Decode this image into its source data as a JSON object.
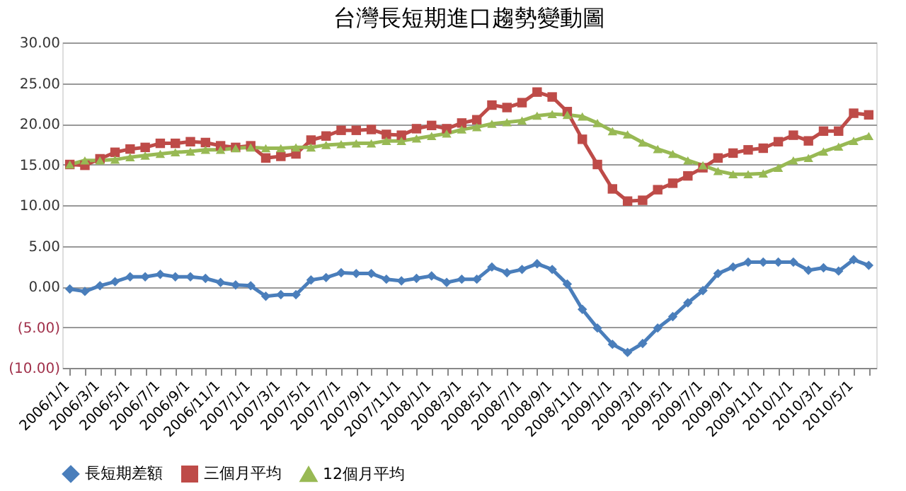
{
  "chart_data": {
    "type": "line",
    "title": "台灣長短期進口趨勢變動圖",
    "categories": [
      "2006/1/1",
      null,
      "2006/3/1",
      null,
      "2006/5/1",
      null,
      "2006/7/1",
      null,
      "2006/9/1",
      null,
      "2006/11/1",
      null,
      "2007/1/1",
      null,
      "2007/3/1",
      null,
      "2007/5/1",
      null,
      "2007/7/1",
      null,
      "2007/9/1",
      null,
      "2007/11/1",
      null,
      "2008/1/1",
      null,
      "2008/3/1",
      null,
      "2008/5/1",
      null,
      "2008/7/1",
      null,
      "2008/9/1",
      null,
      "2008/11/1",
      null,
      "2009/1/1",
      null,
      "2009/3/1",
      null,
      "2009/5/1",
      null,
      "2009/7/1",
      null,
      "2009/9/1",
      null,
      "2009/11/1",
      null,
      "2010/1/1",
      null,
      "2010/3/1",
      null,
      "2010/5/1",
      null
    ],
    "series": [
      {
        "name": "長短期差額",
        "color": "#4a7ebb",
        "marker": "diamond",
        "values": [
          -0.3,
          -0.6,
          0.1,
          0.6,
          1.2,
          1.2,
          1.5,
          1.2,
          1.2,
          1.0,
          0.5,
          0.2,
          0.1,
          -1.2,
          -1.0,
          -1.0,
          0.8,
          1.1,
          1.7,
          1.6,
          1.6,
          0.9,
          0.7,
          1.0,
          1.3,
          0.5,
          0.9,
          0.9,
          2.4,
          1.7,
          2.1,
          2.8,
          2.1,
          0.3,
          -2.8,
          -5.1,
          -7.1,
          -8.1,
          -7.0,
          -5.1,
          -3.7,
          -2.0,
          -0.5,
          1.6,
          2.4,
          3.0,
          3.0,
          3.0,
          3.0,
          2.0,
          2.3,
          1.9,
          3.3,
          2.6
        ]
      },
      {
        "name": "三個月平均",
        "color": "#be4b48",
        "marker": "square",
        "values": [
          15.0,
          14.9,
          15.7,
          16.5,
          16.9,
          17.1,
          17.6,
          17.6,
          17.8,
          17.7,
          17.3,
          17.1,
          17.3,
          15.8,
          16.0,
          16.3,
          18.0,
          18.5,
          19.2,
          19.2,
          19.3,
          18.7,
          18.6,
          19.4,
          19.8,
          19.4,
          20.1,
          20.5,
          22.3,
          22.0,
          22.6,
          23.9,
          23.3,
          21.5,
          18.1,
          15.0,
          12.0,
          10.5,
          10.6,
          11.9,
          12.7,
          13.6,
          14.6,
          15.8,
          16.4,
          16.8,
          17.0,
          17.8,
          18.6,
          17.9,
          19.1,
          19.1,
          21.3,
          21.1
        ]
      },
      {
        "name": "12個月平均",
        "color": "#98b954",
        "marker": "triangle",
        "values": [
          15.0,
          15.5,
          15.5,
          15.6,
          15.9,
          16.1,
          16.3,
          16.5,
          16.6,
          16.8,
          16.8,
          17.0,
          17.1,
          17.0,
          17.0,
          17.1,
          17.1,
          17.4,
          17.5,
          17.6,
          17.6,
          17.9,
          17.9,
          18.2,
          18.5,
          18.8,
          19.3,
          19.6,
          20.0,
          20.2,
          20.4,
          21.0,
          21.2,
          21.1,
          20.9,
          20.1,
          19.1,
          18.7,
          17.7,
          16.9,
          16.3,
          15.5,
          14.9,
          14.2,
          13.8,
          13.8,
          13.9,
          14.6,
          15.5,
          15.8,
          16.6,
          17.2,
          17.9,
          18.5
        ]
      }
    ],
    "ylim": [
      -10,
      30
    ],
    "yticks": [
      {
        "value": -10,
        "label": "(10.00)"
      },
      {
        "value": -5,
        "label": "(5.00)"
      },
      {
        "value": 0,
        "label": "0.00"
      },
      {
        "value": 5,
        "label": "5.00"
      },
      {
        "value": 10,
        "label": "10.00"
      },
      {
        "value": 15,
        "label": "15.00"
      },
      {
        "value": 20,
        "label": "20.00"
      },
      {
        "value": 25,
        "label": "25.00"
      },
      {
        "value": 30,
        "label": "30.00"
      }
    ],
    "grid": "y",
    "legend": "bottom",
    "line_style": "solid"
  }
}
